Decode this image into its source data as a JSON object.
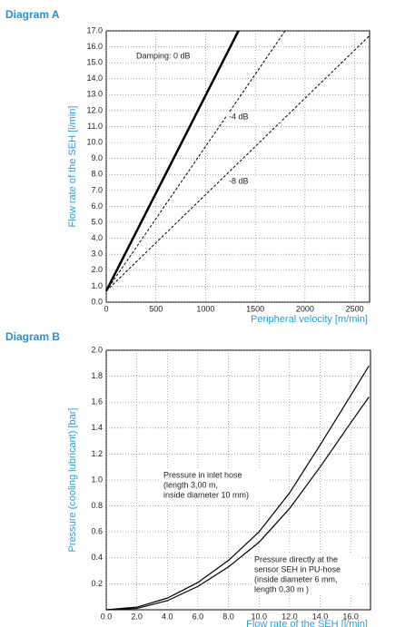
{
  "chart_data": [
    {
      "type": "line",
      "title": "Diagram A",
      "xlabel": "Peripheral velocity [m/min]",
      "ylabel": "Flow rate of the SEH [l/min]",
      "xlim": [
        0,
        2650
      ],
      "ylim": [
        0,
        17
      ],
      "xticks": [
        0,
        500,
        1000,
        1500,
        2000,
        2500
      ],
      "yticks": [
        {
          "value": 0,
          "label": "0.0"
        },
        {
          "value": 1,
          "label": "1.0"
        },
        {
          "value": 2,
          "label": "2.0"
        },
        {
          "value": 3,
          "label": "3.0"
        },
        {
          "value": 4,
          "label": "4.0"
        },
        {
          "value": 5,
          "label": "5.0"
        },
        {
          "value": 6,
          "label": "6.0"
        },
        {
          "value": 7,
          "label": "7.0"
        },
        {
          "value": 8,
          "label": "8.0"
        },
        {
          "value": 9,
          "label": "9.0"
        },
        {
          "value": 10,
          "label": "10.0"
        },
        {
          "value": 11,
          "label": "11.0"
        },
        {
          "value": 12,
          "label": "12.0"
        },
        {
          "value": 13,
          "label": "13.0"
        },
        {
          "value": 14,
          "label": "14.0"
        },
        {
          "value": 15,
          "label": "15.0"
        },
        {
          "value": 16,
          "label": "16.0"
        },
        {
          "value": 17,
          "label": "17.0"
        }
      ],
      "grid": true,
      "series": [
        {
          "color": "#000000",
          "dash": "solid",
          "width": 2.5,
          "x": [
            0,
            1330
          ],
          "values": [
            0.7,
            17
          ]
        },
        {
          "color": "#000000",
          "dash": "dashed",
          "width": 1,
          "x": [
            0,
            1800
          ],
          "values": [
            0.7,
            17
          ]
        },
        {
          "color": "#000000",
          "dash": "dashed",
          "width": 1,
          "x": [
            0,
            2650
          ],
          "values": [
            0.7,
            16.7
          ]
        }
      ],
      "annotations": [
        {
          "lines": [
            "Damping: 0 dB"
          ]
        },
        {
          "lines": [
            "-4 dB"
          ]
        },
        {
          "lines": [
            "-8 dB"
          ]
        }
      ]
    },
    {
      "type": "line",
      "title": "Diagram B",
      "xlabel": "Flow rate of the SEH [l/min]",
      "ylabel": "Pressure (cooling lubricant) [bar]",
      "xlim": [
        0,
        17.3
      ],
      "ylim": [
        0,
        2
      ],
      "xticks": [
        {
          "value": 0,
          "label": "0.0"
        },
        {
          "value": 2,
          "label": "2.0"
        },
        {
          "value": 4,
          "label": "4.0"
        },
        {
          "value": 6,
          "label": "6.0"
        },
        {
          "value": 8,
          "label": "8.0"
        },
        {
          "value": 10,
          "label": "10.0"
        },
        {
          "value": 12,
          "label": "12.0"
        },
        {
          "value": 14,
          "label": "14.0"
        },
        {
          "value": 16,
          "label": "16.0"
        }
      ],
      "yticks": [
        0.2,
        0.4,
        0.6,
        0.8,
        {
          "value": 1,
          "label": "1.0"
        },
        1.2,
        1.4,
        1.6,
        1.8,
        {
          "value": 2,
          "label": "2.0"
        }
      ],
      "grid": true,
      "series": [
        {
          "color": "#000000",
          "dash": "solid",
          "width": 1.2,
          "x": [
            0,
            2,
            4,
            6,
            8,
            10,
            12,
            14,
            16,
            17.2
          ],
          "values": [
            0,
            0.02,
            0.09,
            0.21,
            0.38,
            0.6,
            0.9,
            1.27,
            1.65,
            1.88
          ]
        },
        {
          "color": "#000000",
          "dash": "solid",
          "width": 1.2,
          "x": [
            0,
            2,
            4,
            6,
            8,
            10,
            12,
            14,
            16,
            17.2
          ],
          "values": [
            0,
            0.01,
            0.07,
            0.18,
            0.33,
            0.52,
            0.78,
            1.1,
            1.44,
            1.64
          ]
        }
      ],
      "annotations": [
        {
          "lines": [
            "Pressure in inlet hose",
            "(length 3,00 m,",
            " inside diameter 10 mm)"
          ]
        },
        {
          "lines": [
            "Pressure directly at the",
            "sensor SEH in PU-hose",
            "(inside diameter 6 mm,",
            "length 0,30 m )"
          ]
        }
      ]
    }
  ]
}
